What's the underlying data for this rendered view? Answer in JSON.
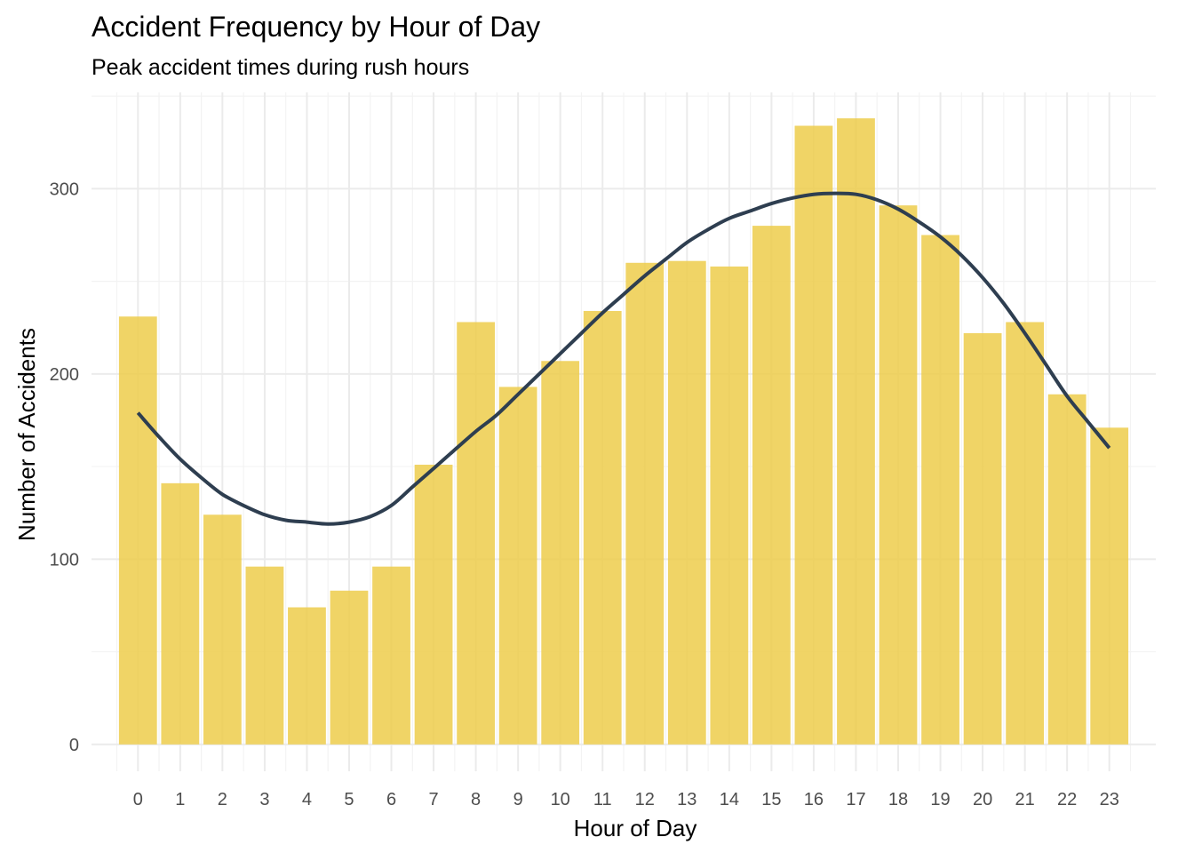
{
  "chart_data": {
    "type": "bar",
    "title": "Accident Frequency by Hour of Day",
    "subtitle": "Peak accident times during rush hours",
    "xlabel": "Hour of Day",
    "ylabel": "Number of Accidents",
    "categories": [
      "0",
      "1",
      "2",
      "3",
      "4",
      "5",
      "6",
      "7",
      "8",
      "9",
      "10",
      "11",
      "12",
      "13",
      "14",
      "15",
      "16",
      "17",
      "18",
      "19",
      "20",
      "21",
      "22",
      "23"
    ],
    "values": [
      231,
      141,
      124,
      96,
      74,
      83,
      96,
      151,
      228,
      193,
      207,
      234,
      260,
      261,
      258,
      280,
      334,
      338,
      291,
      275,
      222,
      228,
      189,
      171
    ],
    "ylim": [
      -14.5,
      352
    ],
    "yticks": [
      0,
      100,
      200,
      300
    ],
    "grid": true,
    "bar_color": "#EDCC4B",
    "bar_opacity": 0.85,
    "trend": {
      "type": "smooth",
      "color": "#2E3E50",
      "x": [
        0,
        0.5,
        1,
        1.5,
        2,
        2.5,
        3,
        3.5,
        4,
        4.5,
        5,
        5.5,
        6,
        6.5,
        7,
        7.5,
        8,
        8.5,
        9,
        9.5,
        10,
        10.5,
        11,
        11.5,
        12,
        12.5,
        13,
        13.5,
        14,
        14.5,
        15,
        15.5,
        16,
        16.5,
        17,
        17.5,
        18,
        18.5,
        19,
        19.5,
        20,
        20.5,
        21,
        21.5,
        22,
        22.5,
        23
      ],
      "y": [
        179,
        166,
        154,
        144,
        135,
        129,
        124,
        121,
        120,
        119,
        120,
        123,
        129,
        139,
        149,
        159,
        169,
        178,
        189,
        200,
        211,
        222,
        233,
        243,
        253,
        262,
        271,
        278,
        284,
        288,
        292,
        295,
        297,
        297.5,
        297,
        294,
        289,
        282,
        274,
        264,
        252,
        238,
        222,
        205,
        188,
        174,
        160
      ]
    }
  }
}
